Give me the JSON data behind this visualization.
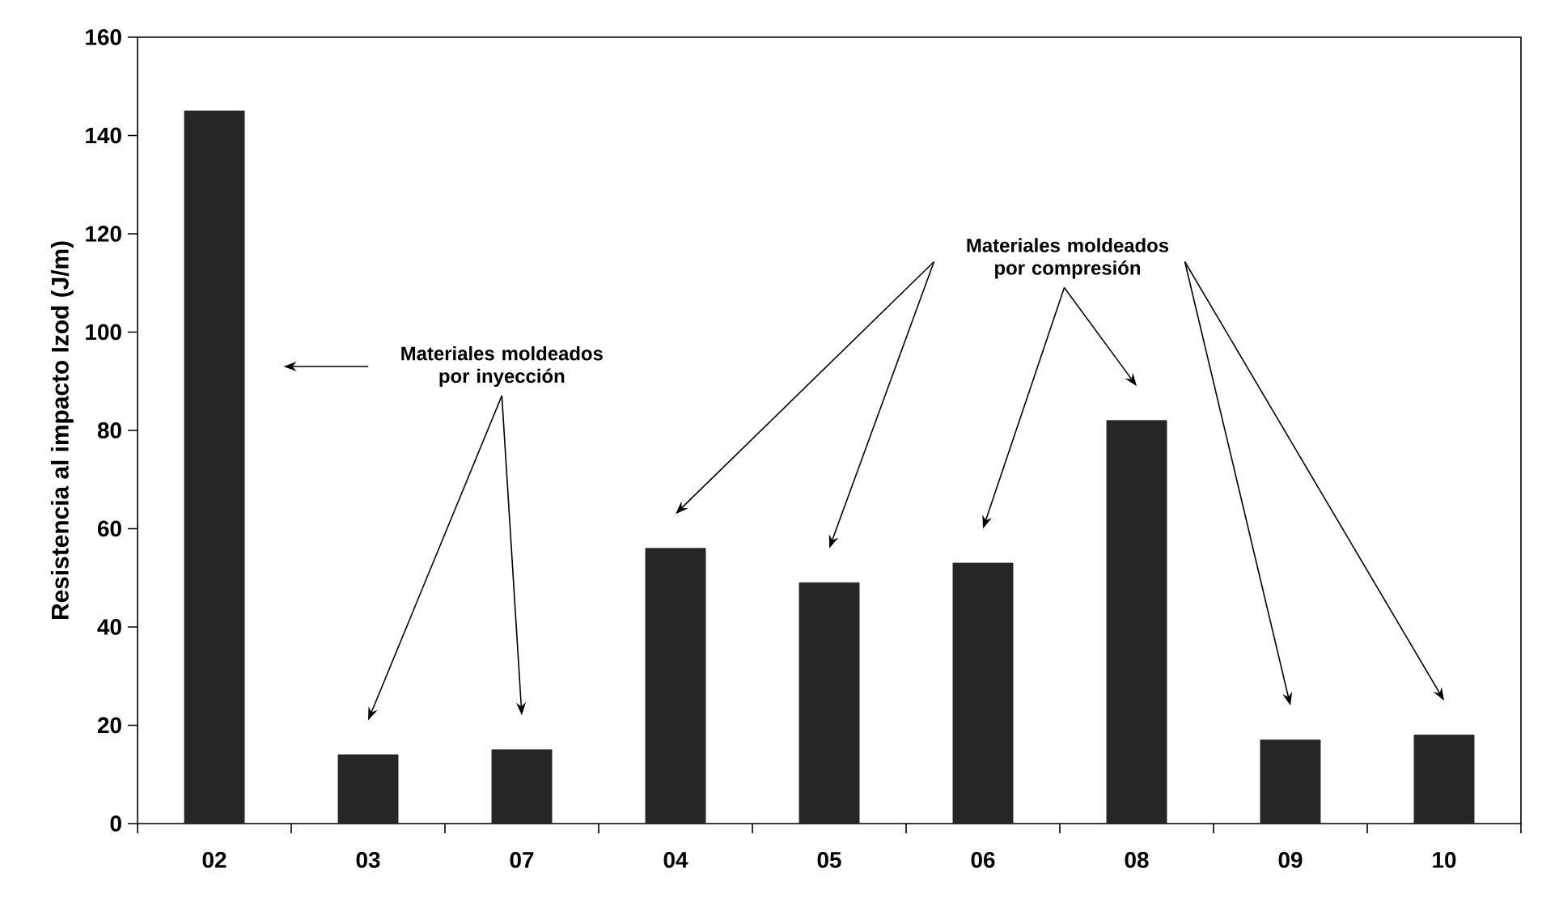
{
  "chart_data": {
    "type": "bar",
    "ylabel": "Resistencia al impacto Izod (J/m)",
    "categories": [
      "02",
      "03",
      "07",
      "04",
      "05",
      "06",
      "08",
      "09",
      "10"
    ],
    "values": [
      145,
      14,
      15,
      56,
      49,
      53,
      82,
      17,
      18
    ],
    "color": "#262626",
    "ylim": [
      0,
      160
    ],
    "yticks": [
      0,
      20,
      40,
      60,
      80,
      100,
      120,
      140,
      160
    ],
    "grid": false,
    "annotations": [
      "Materiales moldeados por inyección",
      "Materiales moldeados por compresión"
    ]
  }
}
